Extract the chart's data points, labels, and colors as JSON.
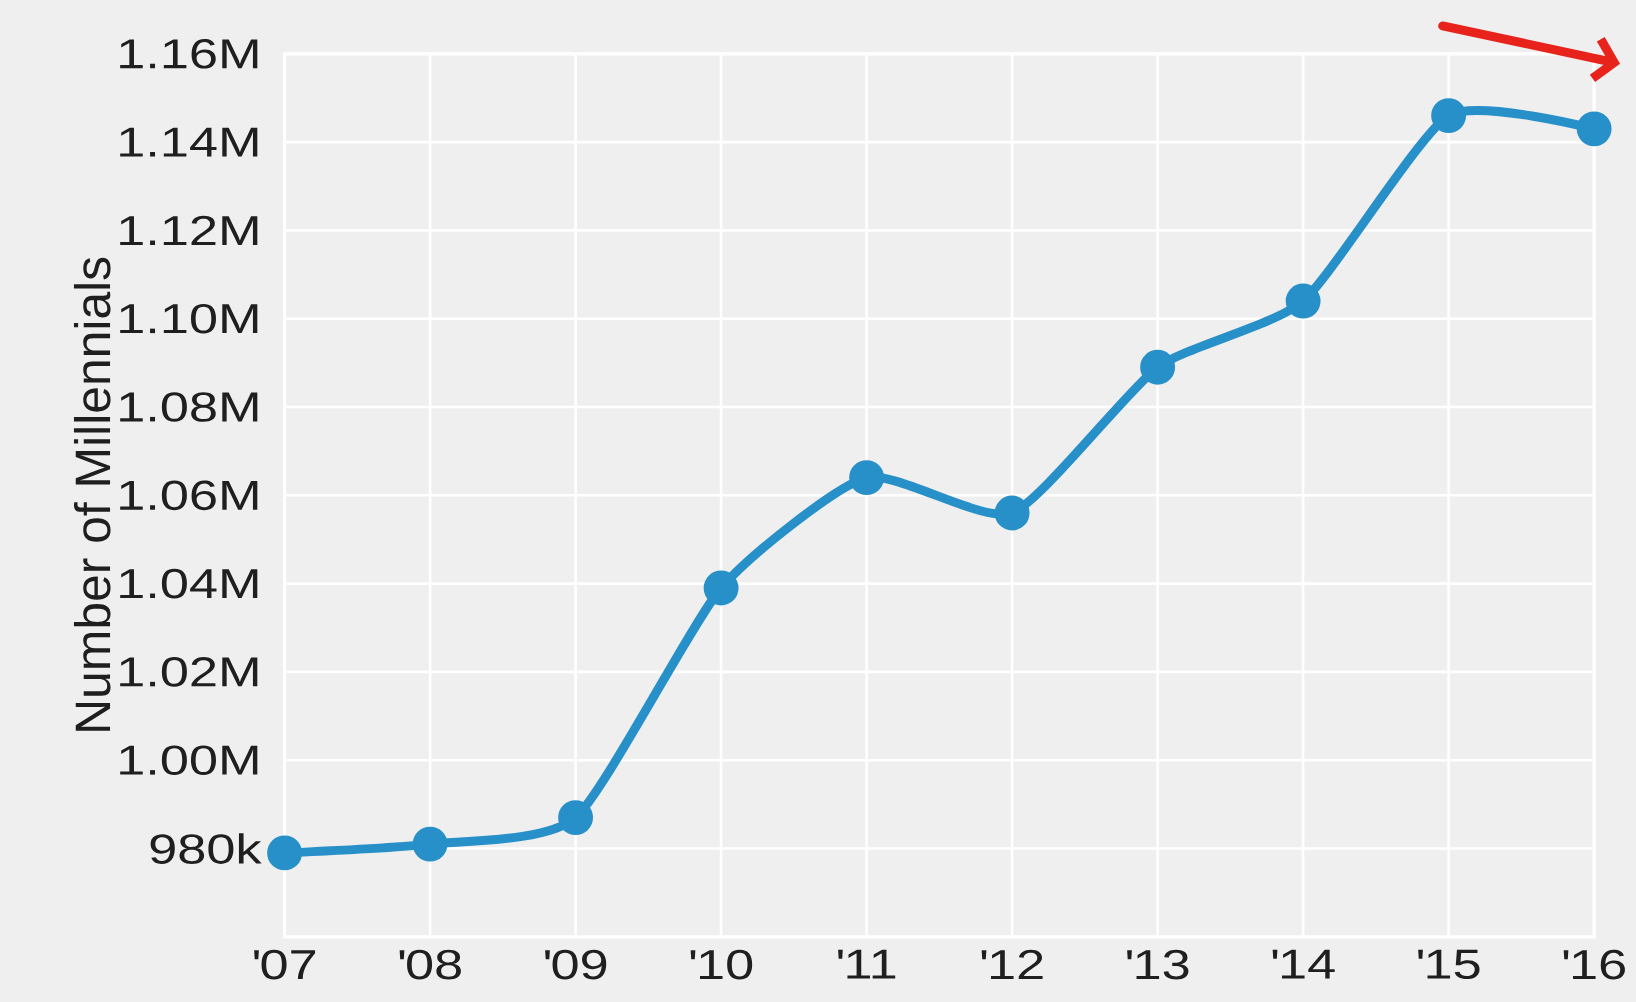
{
  "chart_data": {
    "type": "line",
    "ylabel": "Number of Millennials",
    "categories": [
      "'07",
      "'08",
      "'09",
      "'10",
      "'11",
      "'12",
      "'13",
      "'14",
      "'15",
      "'16"
    ],
    "series": [
      {
        "color": "#2790c9",
        "values": [
          979000,
          981000,
          987000,
          1039000,
          1064000,
          1056000,
          1089000,
          1104000,
          1146000,
          1143000
        ]
      }
    ],
    "ylim": [
      960000,
      1160000
    ],
    "yticks": [
      {
        "value": 980000,
        "label": "980k"
      },
      {
        "value": 1000000,
        "label": "1.00M"
      },
      {
        "value": 1020000,
        "label": "1.02M"
      },
      {
        "value": 1040000,
        "label": "1.04M"
      },
      {
        "value": 1060000,
        "label": "1.06M"
      },
      {
        "value": 1080000,
        "label": "1.08M"
      },
      {
        "value": 1100000,
        "label": "1.10M"
      },
      {
        "value": 1120000,
        "label": "1.12M"
      },
      {
        "value": 1140000,
        "label": "1.14M"
      },
      {
        "value": 1160000,
        "label": "1.16M"
      }
    ],
    "grid": true,
    "marker": "circle",
    "line_style": "solid"
  }
}
